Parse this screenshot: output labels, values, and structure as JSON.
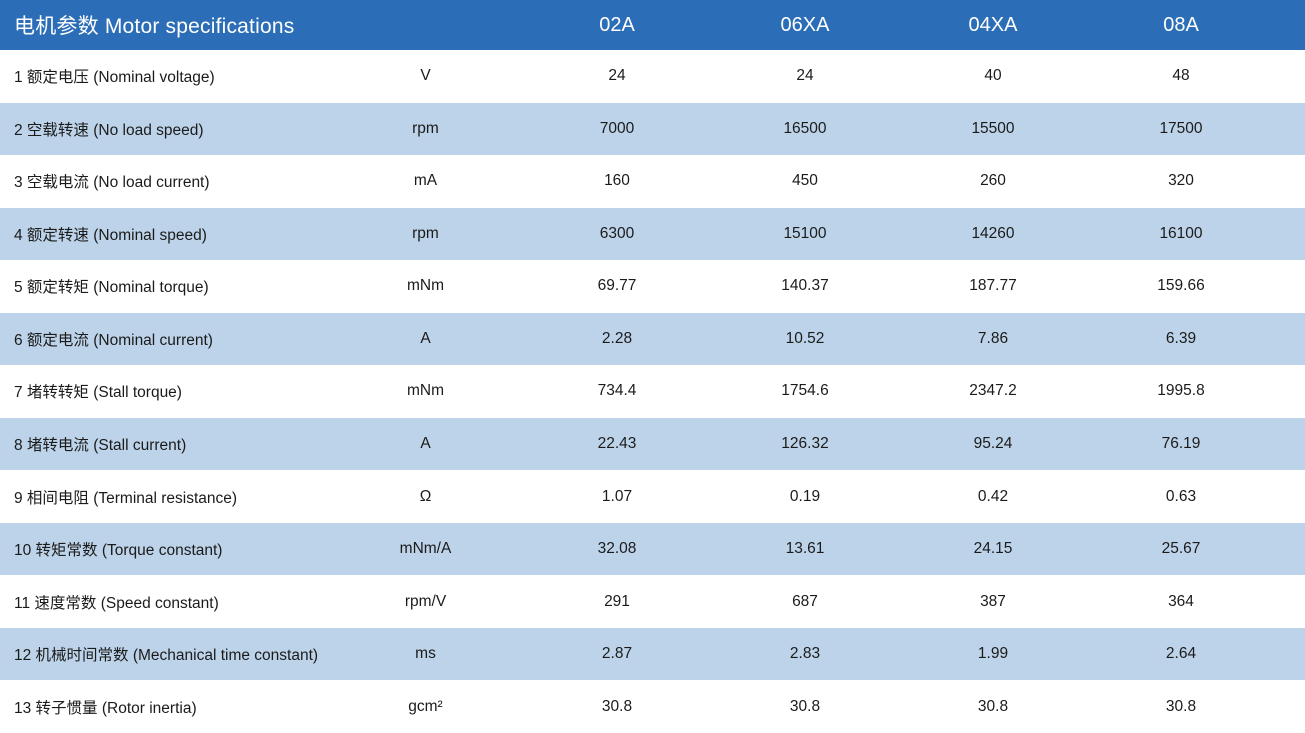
{
  "colors": {
    "header_bg": "#2B6DB6",
    "stripe_bg": "#BDD3E9",
    "header_text": "#FFFFFF",
    "body_text": "#1B1B1B"
  },
  "table": {
    "header": {
      "title": "电机参数 Motor specifications",
      "models": [
        "02A",
        "06XA",
        "04XA",
        "08A"
      ]
    },
    "rows": [
      {
        "label": "1 额定电压 (Nominal voltage)",
        "unit": "V",
        "values": [
          "24",
          "24",
          "40",
          "48"
        ]
      },
      {
        "label": "2 空载转速 (No load speed)",
        "unit": "rpm",
        "values": [
          "7000",
          "16500",
          "15500",
          "17500"
        ]
      },
      {
        "label": "3 空载电流 (No load current)",
        "unit": "mA",
        "values": [
          "160",
          "450",
          "260",
          "320"
        ]
      },
      {
        "label": "4 额定转速 (Nominal speed)",
        "unit": "rpm",
        "values": [
          "6300",
          "15100",
          "14260",
          "16100"
        ]
      },
      {
        "label": "5 额定转矩 (Nominal torque)",
        "unit": "mNm",
        "values": [
          "69.77",
          "140.37",
          "187.77",
          "159.66"
        ]
      },
      {
        "label": "6 额定电流 (Nominal current)",
        "unit": "A",
        "values": [
          "2.28",
          "10.52",
          "7.86",
          "6.39"
        ]
      },
      {
        "label": "7 堵转转矩 (Stall torque)",
        "unit": "mNm",
        "values": [
          "734.4",
          "1754.6",
          "2347.2",
          "1995.8"
        ]
      },
      {
        "label": "8 堵转电流 (Stall current)",
        "unit": "A",
        "values": [
          "22.43",
          "126.32",
          "95.24",
          "76.19"
        ]
      },
      {
        "label": "9 相间电阻 (Terminal resistance)",
        "unit": "Ω",
        "values": [
          "1.07",
          "0.19",
          "0.42",
          "0.63"
        ]
      },
      {
        "label": "10 转矩常数 (Torque constant)",
        "unit": "mNm/A",
        "values": [
          "32.08",
          "13.61",
          "24.15",
          "25.67"
        ]
      },
      {
        "label": "11 速度常数 (Speed constant)",
        "unit": "rpm/V",
        "values": [
          "291",
          "687",
          "387",
          "364"
        ]
      },
      {
        "label": "12 机械时间常数 (Mechanical time constant)",
        "unit": "ms",
        "values": [
          "2.87",
          "2.83",
          "1.99",
          "2.64"
        ]
      },
      {
        "label": "13 转子惯量 (Rotor inertia)",
        "unit": "gcm²",
        "values": [
          "30.8",
          "30.8",
          "30.8",
          "30.8"
        ]
      }
    ]
  }
}
